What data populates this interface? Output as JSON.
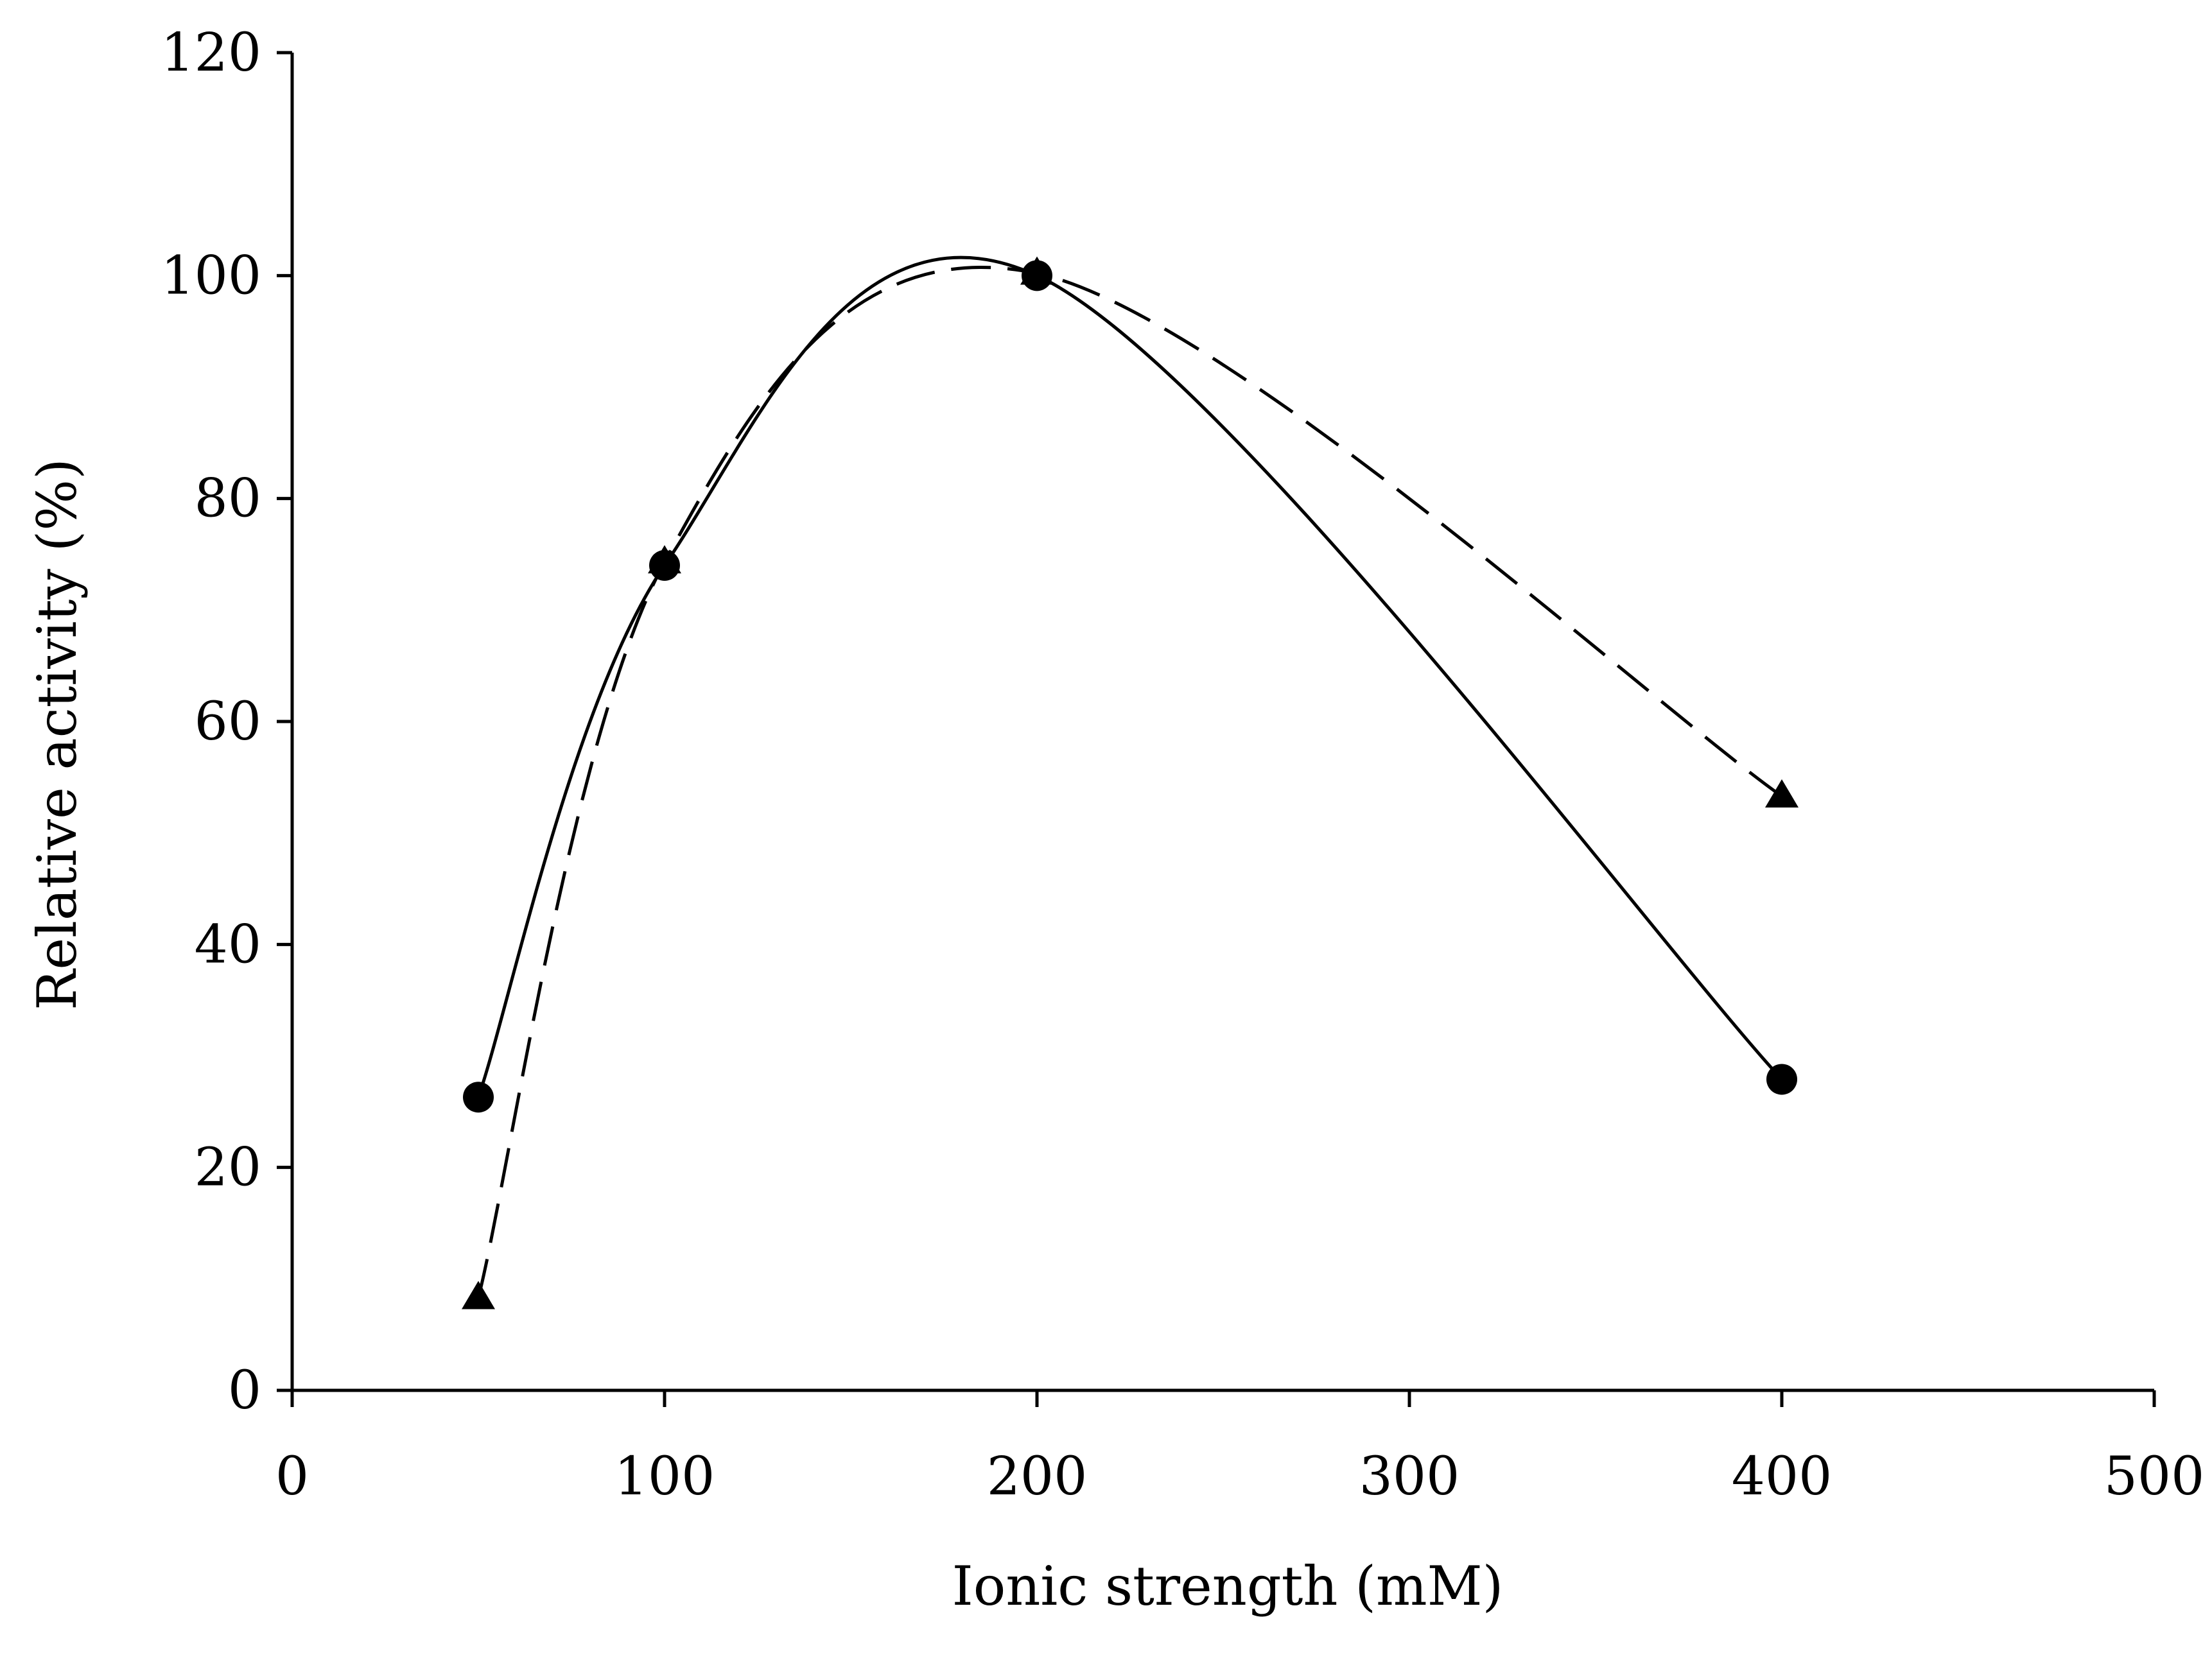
{
  "chart_data": {
    "type": "line",
    "title": "",
    "xlabel": "Ionic strength (mM)",
    "ylabel": "Relative activity (%)",
    "xlim": [
      0,
      500
    ],
    "ylim": [
      0,
      120
    ],
    "xticks": [
      0,
      100,
      200,
      300,
      400,
      500
    ],
    "yticks": [
      0,
      20,
      40,
      60,
      80,
      100,
      120
    ],
    "xtick_labels": [
      "0",
      "100",
      "200",
      "300",
      "400",
      "500"
    ],
    "ytick_labels": [
      "0",
      "20",
      "40",
      "60",
      "80",
      "100",
      "120"
    ],
    "grid": false,
    "legend": "none",
    "series": [
      {
        "name": "circles-solid",
        "marker": "circle",
        "line_style": "solid",
        "x": [
          50,
          100,
          200,
          400
        ],
        "y": [
          26.3,
          74,
          100,
          27.9
        ]
      },
      {
        "name": "triangles-dashed",
        "marker": "triangle",
        "line_style": "dashed",
        "x": [
          50,
          100,
          200,
          400
        ],
        "y": [
          8.3,
          74.3,
          100.2,
          53.3
        ]
      }
    ]
  }
}
